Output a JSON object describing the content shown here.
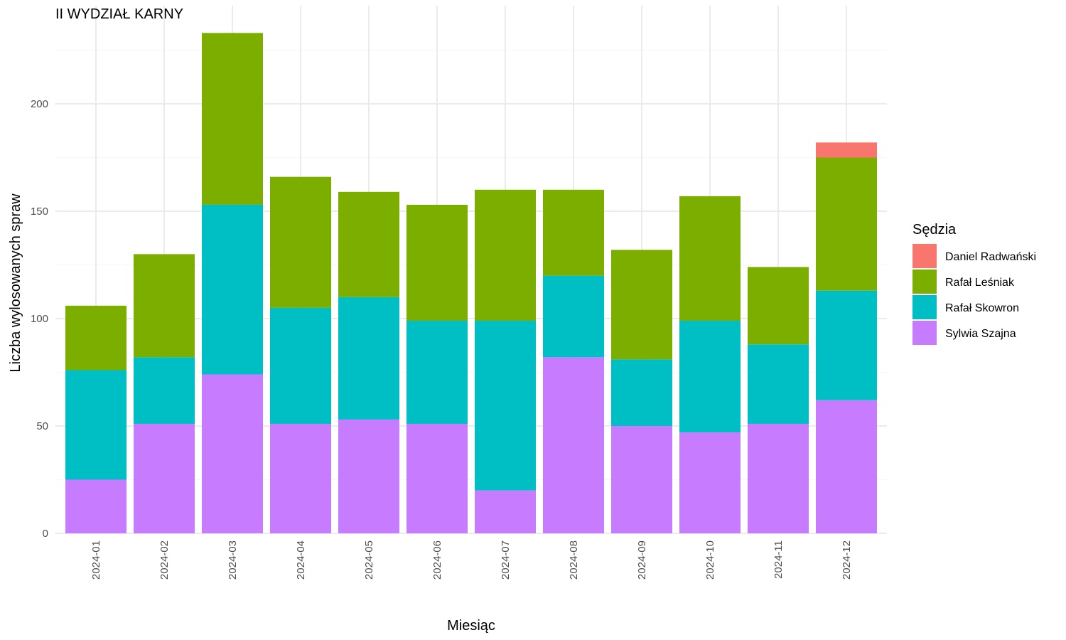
{
  "chart_data": {
    "type": "bar",
    "stacked": true,
    "title": "II WYDZIAŁ KARNY",
    "xlabel": "Miesiąc",
    "ylabel": "Liczba wylosowanych spraw",
    "ylim": [
      0,
      245
    ],
    "yticks": [
      0,
      50,
      100,
      150,
      200
    ],
    "grid": true,
    "legend_position": "right",
    "legend_title": "Sędzia",
    "categories": [
      "2024-01",
      "2024-02",
      "2024-03",
      "2024-04",
      "2024-05",
      "2024-06",
      "2024-07",
      "2024-08",
      "2024-09",
      "2024-10",
      "2024-11",
      "2024-12"
    ],
    "series": [
      {
        "name": "Sylwia Szajna",
        "color": "#C77CFF",
        "values": [
          25,
          51,
          74,
          51,
          53,
          51,
          20,
          82,
          50,
          47,
          51,
          62
        ]
      },
      {
        "name": "Rafał Skowron",
        "color": "#00BFC4",
        "values": [
          51,
          31,
          79,
          54,
          57,
          48,
          79,
          38,
          31,
          52,
          37,
          51
        ]
      },
      {
        "name": "Rafał Leśniak",
        "color": "#7CAE00",
        "values": [
          30,
          48,
          80,
          61,
          49,
          54,
          61,
          40,
          51,
          58,
          36,
          62
        ]
      },
      {
        "name": "Daniel Radwański",
        "color": "#F8766D",
        "values": [
          0,
          0,
          0,
          0,
          0,
          0,
          0,
          0,
          0,
          0,
          0,
          7
        ]
      }
    ],
    "legend_order": [
      "Daniel Radwański",
      "Rafał Leśniak",
      "Rafał Skowron",
      "Sylwia Szajna"
    ]
  }
}
